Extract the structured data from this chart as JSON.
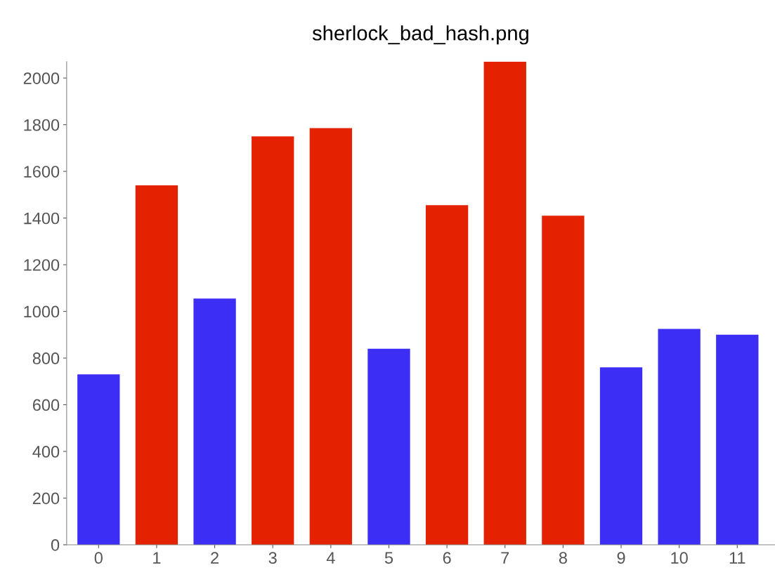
{
  "chart_data": {
    "type": "bar",
    "title": "sherlock_bad_hash.png",
    "categories": [
      "0",
      "1",
      "2",
      "3",
      "4",
      "5",
      "6",
      "7",
      "8",
      "9",
      "10",
      "11"
    ],
    "values": [
      730,
      1540,
      1055,
      1750,
      1785,
      840,
      1455,
      2070,
      1410,
      760,
      925,
      900
    ],
    "colors": [
      "#3d2ef5",
      "#e52200",
      "#3d2ef5",
      "#e52200",
      "#e52200",
      "#3d2ef5",
      "#e52200",
      "#e52200",
      "#e52200",
      "#3d2ef5",
      "#3d2ef5",
      "#3d2ef5"
    ],
    "ylim": [
      0,
      2070
    ],
    "yticks": [
      0,
      200,
      400,
      600,
      800,
      1000,
      1200,
      1400,
      1600,
      1800,
      2000
    ],
    "grid": false
  }
}
